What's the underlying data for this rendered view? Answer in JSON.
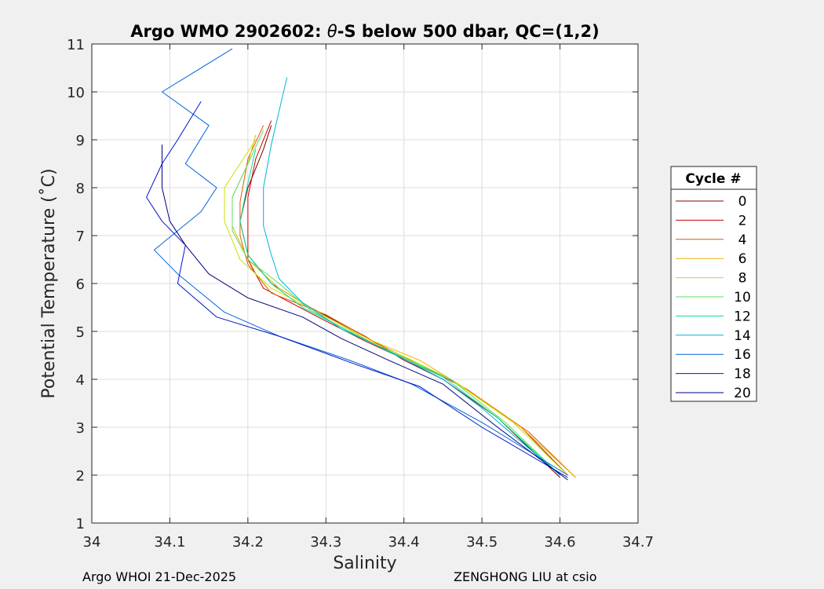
{
  "chart_data": {
    "type": "line",
    "title": "Argo WMO 2902602: θ-S below 500 dbar,  QC=(1,2)",
    "title_parts": {
      "prefix": "Argo WMO 2902602: ",
      "symbol": "θ",
      "suffix": "-S below 500 dbar,  QC=(1,2)"
    },
    "xlabel": "Salinity",
    "ylabel": "Potential Temperature (˚C)",
    "xlim": [
      34.0,
      34.7
    ],
    "ylim": [
      1,
      11
    ],
    "xticks": [
      "34",
      "34.1",
      "34.2",
      "34.3",
      "34.4",
      "34.5",
      "34.6",
      "34.7"
    ],
    "yticks": [
      "1",
      "2",
      "3",
      "4",
      "5",
      "6",
      "7",
      "8",
      "9",
      "10",
      "11"
    ],
    "grid": true,
    "legend": {
      "title": "Cycle #",
      "placement": "right",
      "entries": [
        {
          "label": "0",
          "color": "#800000"
        },
        {
          "label": "2",
          "color": "#cc0000"
        },
        {
          "label": "4",
          "color": "#e05a00"
        },
        {
          "label": "6",
          "color": "#f0b400"
        },
        {
          "label": "8",
          "color": "#c8e000"
        },
        {
          "label": "10",
          "color": "#5ce05c"
        },
        {
          "label": "12",
          "color": "#00e0a0"
        },
        {
          "label": "14",
          "color": "#00b4d8"
        },
        {
          "label": "16",
          "color": "#0064dc"
        },
        {
          "label": "18",
          "color": "#0014c8"
        },
        {
          "label": "20",
          "color": "#000080"
        }
      ]
    },
    "series": [
      {
        "name": "0",
        "color": "#800000",
        "points": [
          [
            34.6,
            1.95
          ],
          [
            34.52,
            3.2
          ],
          [
            34.45,
            4.0
          ],
          [
            34.4,
            4.4
          ],
          [
            34.35,
            4.9
          ],
          [
            34.28,
            5.5
          ],
          [
            34.23,
            6.0
          ],
          [
            34.2,
            6.6
          ],
          [
            34.19,
            7.3
          ],
          [
            34.2,
            8.0
          ],
          [
            34.22,
            8.8
          ],
          [
            34.23,
            9.3
          ]
        ]
      },
      {
        "name": "2",
        "color": "#cc0000",
        "points": [
          [
            34.61,
            2.0
          ],
          [
            34.55,
            3.0
          ],
          [
            34.47,
            3.9
          ],
          [
            34.41,
            4.35
          ],
          [
            34.35,
            4.8
          ],
          [
            34.29,
            5.3
          ],
          [
            34.22,
            5.9
          ],
          [
            34.2,
            6.5
          ],
          [
            34.2,
            7.1
          ],
          [
            34.2,
            7.8
          ],
          [
            34.21,
            8.6
          ],
          [
            34.23,
            9.4
          ]
        ]
      },
      {
        "name": "4",
        "color": "#e05a00",
        "points": [
          [
            34.62,
            1.95
          ],
          [
            34.56,
            2.9
          ],
          [
            34.48,
            3.8
          ],
          [
            34.42,
            4.3
          ],
          [
            34.36,
            4.8
          ],
          [
            34.3,
            5.35
          ],
          [
            34.23,
            5.8
          ],
          [
            34.2,
            6.4
          ],
          [
            34.19,
            7.0
          ],
          [
            34.19,
            7.7
          ],
          [
            34.2,
            8.6
          ],
          [
            34.22,
            9.3
          ]
        ]
      },
      {
        "name": "6",
        "color": "#f0b400",
        "points": [
          [
            34.62,
            1.95
          ],
          [
            34.55,
            3.0
          ],
          [
            34.47,
            3.9
          ],
          [
            34.42,
            4.4
          ],
          [
            34.36,
            4.8
          ],
          [
            34.3,
            5.3
          ],
          [
            34.24,
            5.9
          ],
          [
            34.2,
            6.5
          ],
          [
            34.18,
            7.2
          ],
          [
            34.18,
            7.8
          ],
          [
            34.2,
            8.5
          ],
          [
            34.21,
            9.1
          ]
        ]
      },
      {
        "name": "8",
        "color": "#c8e000",
        "points": [
          [
            34.61,
            2.0
          ],
          [
            34.54,
            3.1
          ],
          [
            34.46,
            4.0
          ],
          [
            34.41,
            4.4
          ],
          [
            34.35,
            4.85
          ],
          [
            34.29,
            5.4
          ],
          [
            34.23,
            5.9
          ],
          [
            34.19,
            6.5
          ],
          [
            34.17,
            7.3
          ],
          [
            34.17,
            8.0
          ],
          [
            34.19,
            8.5
          ],
          [
            34.21,
            9.0
          ]
        ]
      },
      {
        "name": "10",
        "color": "#5ce05c",
        "points": [
          [
            34.6,
            2.0
          ],
          [
            34.53,
            3.1
          ],
          [
            34.46,
            4.0
          ],
          [
            34.4,
            4.45
          ],
          [
            34.34,
            4.9
          ],
          [
            34.28,
            5.45
          ],
          [
            34.24,
            6.0
          ],
          [
            34.2,
            6.5
          ],
          [
            34.18,
            7.1
          ],
          [
            34.18,
            7.8
          ],
          [
            34.2,
            8.5
          ],
          [
            34.22,
            9.2
          ]
        ]
      },
      {
        "name": "12",
        "color": "#00e0a0",
        "points": [
          [
            34.6,
            2.0
          ],
          [
            34.52,
            3.2
          ],
          [
            34.45,
            4.05
          ],
          [
            34.39,
            4.5
          ],
          [
            34.33,
            5.0
          ],
          [
            34.27,
            5.5
          ],
          [
            34.23,
            6.0
          ],
          [
            34.2,
            6.6
          ],
          [
            34.19,
            7.3
          ],
          [
            34.2,
            8.1
          ],
          [
            34.21,
            8.8
          ]
        ]
      },
      {
        "name": "14",
        "color": "#00b4d8",
        "points": [
          [
            34.6,
            2.0
          ],
          [
            34.5,
            3.4
          ],
          [
            34.45,
            4.0
          ],
          [
            34.38,
            4.6
          ],
          [
            34.32,
            5.05
          ],
          [
            34.27,
            5.6
          ],
          [
            34.24,
            6.1
          ],
          [
            34.23,
            6.6
          ],
          [
            34.22,
            7.2
          ],
          [
            34.22,
            8.0
          ],
          [
            34.23,
            8.9
          ],
          [
            34.25,
            10.3
          ]
        ]
      },
      {
        "name": "16",
        "color": "#0064dc",
        "points": [
          [
            34.61,
            2.0
          ],
          [
            34.5,
            3.1
          ],
          [
            34.41,
            3.9
          ],
          [
            34.33,
            4.4
          ],
          [
            34.24,
            4.9
          ],
          [
            34.17,
            5.4
          ],
          [
            34.11,
            6.2
          ],
          [
            34.08,
            6.7
          ],
          [
            34.14,
            7.5
          ],
          [
            34.16,
            8.0
          ],
          [
            34.12,
            8.5
          ],
          [
            34.15,
            9.3
          ],
          [
            34.09,
            10.0
          ],
          [
            34.18,
            10.9
          ]
        ]
      },
      {
        "name": "18",
        "color": "#0014c8",
        "points": [
          [
            34.61,
            1.95
          ],
          [
            34.5,
            3.0
          ],
          [
            34.42,
            3.85
          ],
          [
            34.34,
            4.3
          ],
          [
            34.24,
            4.9
          ],
          [
            34.16,
            5.3
          ],
          [
            34.11,
            6.0
          ],
          [
            34.12,
            6.8
          ],
          [
            34.09,
            7.3
          ],
          [
            34.07,
            7.8
          ],
          [
            34.09,
            8.5
          ],
          [
            34.11,
            9.0
          ],
          [
            34.14,
            9.8
          ]
        ]
      },
      {
        "name": "20",
        "color": "#000080",
        "points": [
          [
            34.61,
            1.9
          ],
          [
            34.52,
            3.0
          ],
          [
            34.45,
            3.9
          ],
          [
            34.38,
            4.4
          ],
          [
            34.32,
            4.85
          ],
          [
            34.27,
            5.3
          ],
          [
            34.2,
            5.7
          ],
          [
            34.15,
            6.2
          ],
          [
            34.12,
            6.8
          ],
          [
            34.1,
            7.3
          ],
          [
            34.09,
            8.0
          ],
          [
            34.09,
            8.9
          ]
        ]
      }
    ]
  },
  "footer": {
    "left": "Argo WHOI 21-Dec-2025",
    "right": "ZENGHONG LIU at csio"
  }
}
